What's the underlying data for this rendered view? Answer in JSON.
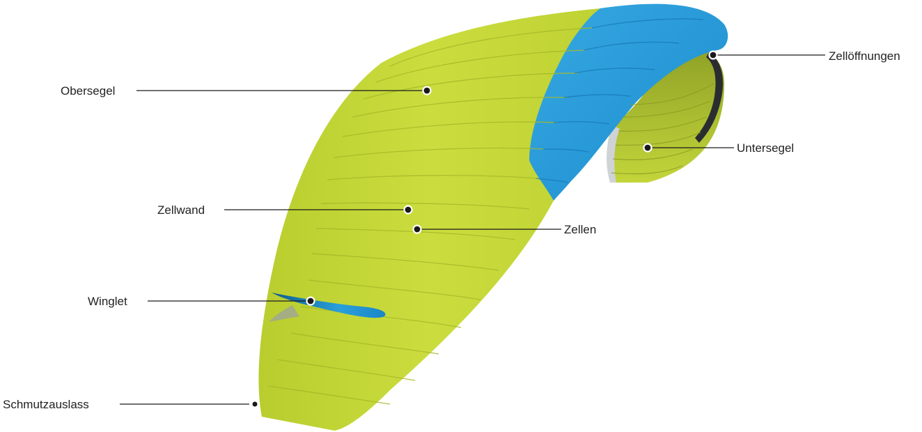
{
  "diagram": {
    "colors": {
      "upper_surface": "#c6d93a",
      "leading_edge_panel": "#2a9fda",
      "trailing_edge": "#e6e8ea",
      "under_surface": "#b7c934",
      "winglet": "#1f8fd0",
      "callout": "#1a1a1a"
    },
    "labels": {
      "obersegel": "Obersegel",
      "zelloeffnungen": "Zellöffnungen",
      "untersegel": "Untersegel",
      "zellwand": "Zellwand",
      "zellen": "Zellen",
      "winglet": "Winglet",
      "schmutzauslass": "Schmutzauslass"
    }
  }
}
